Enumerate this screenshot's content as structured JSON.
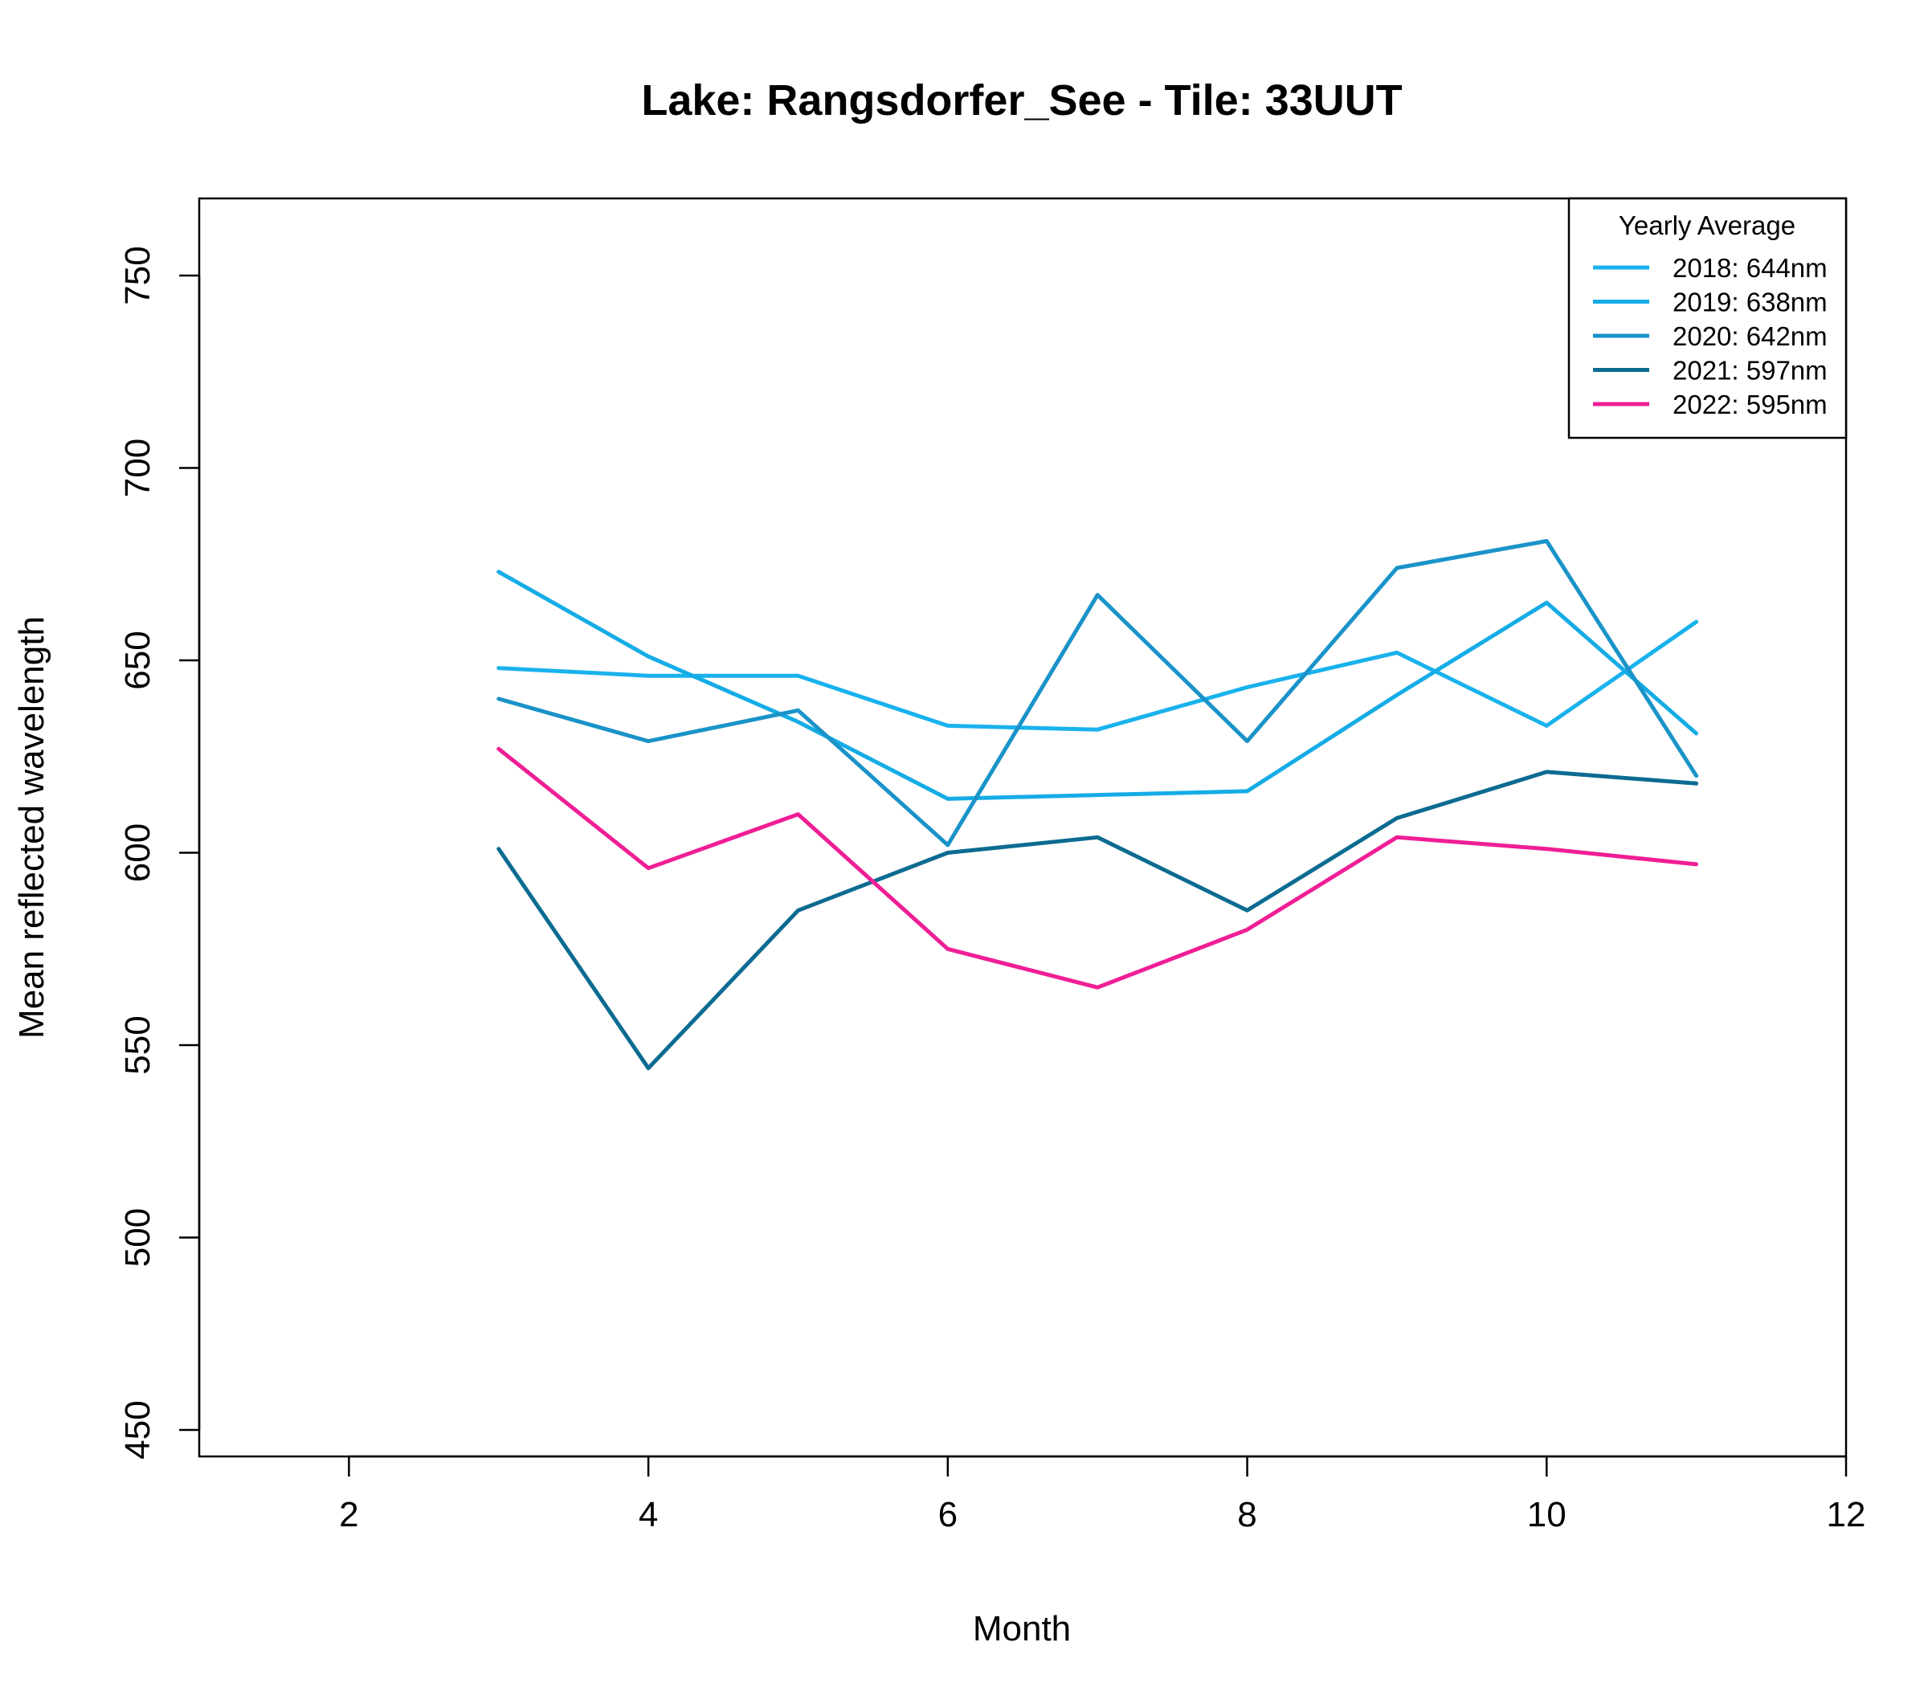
{
  "chart_data": {
    "type": "line",
    "title": "Lake: Rangsdorfer_See  - Tile: 33UUT",
    "xlabel": "Month",
    "ylabel": "Mean reflected wavelength",
    "xlim": [
      1,
      12
    ],
    "ylim": [
      450,
      770
    ],
    "xticks": [
      2,
      4,
      6,
      8,
      10,
      12
    ],
    "yticks": [
      450,
      500,
      550,
      600,
      650,
      700,
      750
    ],
    "x": [
      3,
      4,
      5,
      6,
      7,
      8,
      9,
      10,
      11
    ],
    "legend": {
      "title": "Yearly Average",
      "position": "top-right"
    },
    "grid": false,
    "series": [
      {
        "name": "2018: 644nm",
        "color": "#19B2EC",
        "values": [
          648,
          646,
          646,
          633,
          632,
          643,
          652,
          633,
          660
        ]
      },
      {
        "name": "2019: 638nm",
        "color": "#15ACE6",
        "values": [
          673,
          651,
          634,
          614,
          615,
          616,
          641,
          665,
          631
        ]
      },
      {
        "name": "2020: 642nm",
        "color": "#1A93C9",
        "values": [
          640,
          629,
          637,
          602,
          667,
          629,
          674,
          681,
          620
        ]
      },
      {
        "name": "2021: 597nm",
        "color": "#0C6B91",
        "values": [
          601,
          544,
          585,
          600,
          604,
          585,
          609,
          621,
          618
        ]
      },
      {
        "name": "2022: 595nm",
        "color": "#F01E96",
        "values": [
          627,
          596,
          610,
          575,
          565,
          580,
          604,
          601,
          597
        ]
      }
    ]
  }
}
